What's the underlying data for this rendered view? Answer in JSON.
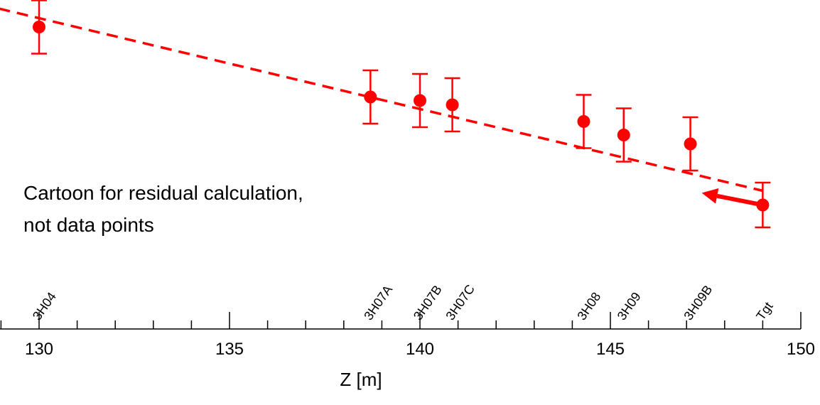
{
  "chart_data": {
    "type": "scatter",
    "xlabel": "Z [m]",
    "xlim": [
      128,
      150
    ],
    "x_ticks": [
      130,
      135,
      140,
      145,
      150
    ],
    "x_tick_labels": [
      "130",
      "135",
      "140",
      "145",
      "150"
    ],
    "x_minor_step": 1,
    "ylim": [
      0,
      1
    ],
    "points": [
      {
        "x": 130.0,
        "y": 0.924,
        "err": 0.075
      },
      {
        "x": 138.7,
        "y": 0.727,
        "err": 0.075
      },
      {
        "x": 140.0,
        "y": 0.717,
        "err": 0.075
      },
      {
        "x": 140.85,
        "y": 0.705,
        "err": 0.075
      },
      {
        "x": 144.3,
        "y": 0.658,
        "err": 0.075
      },
      {
        "x": 145.35,
        "y": 0.62,
        "err": 0.075
      },
      {
        "x": 147.1,
        "y": 0.595,
        "err": 0.075
      },
      {
        "x": 149.0,
        "y": 0.423,
        "err": 0.063
      }
    ],
    "fit_line": {
      "x": [
        128,
        149
      ],
      "y": [
        1.0,
        0.463
      ],
      "style": "dashed"
    },
    "arrow": {
      "from": {
        "x": 149.0,
        "y": 0.423
      },
      "to": {
        "x": 147.4,
        "y": 0.457
      }
    },
    "stations": [
      {
        "label": "3H04",
        "z": 130.0
      },
      {
        "label": "3H07A",
        "z": 138.7
      },
      {
        "label": "3H07B",
        "z": 140.0
      },
      {
        "label": "3H07C",
        "z": 140.85
      },
      {
        "label": "3H08",
        "z": 144.3
      },
      {
        "label": "3H09",
        "z": 145.35
      },
      {
        "label": "3H09B",
        "z": 147.1
      },
      {
        "label": "Tgt",
        "z": 149.0
      }
    ],
    "annotations": [
      "Cartoon for residual calculation,",
      "not data points"
    ],
    "grid": false,
    "colors": {
      "points": "#ff0000",
      "axis": "#000000"
    }
  }
}
